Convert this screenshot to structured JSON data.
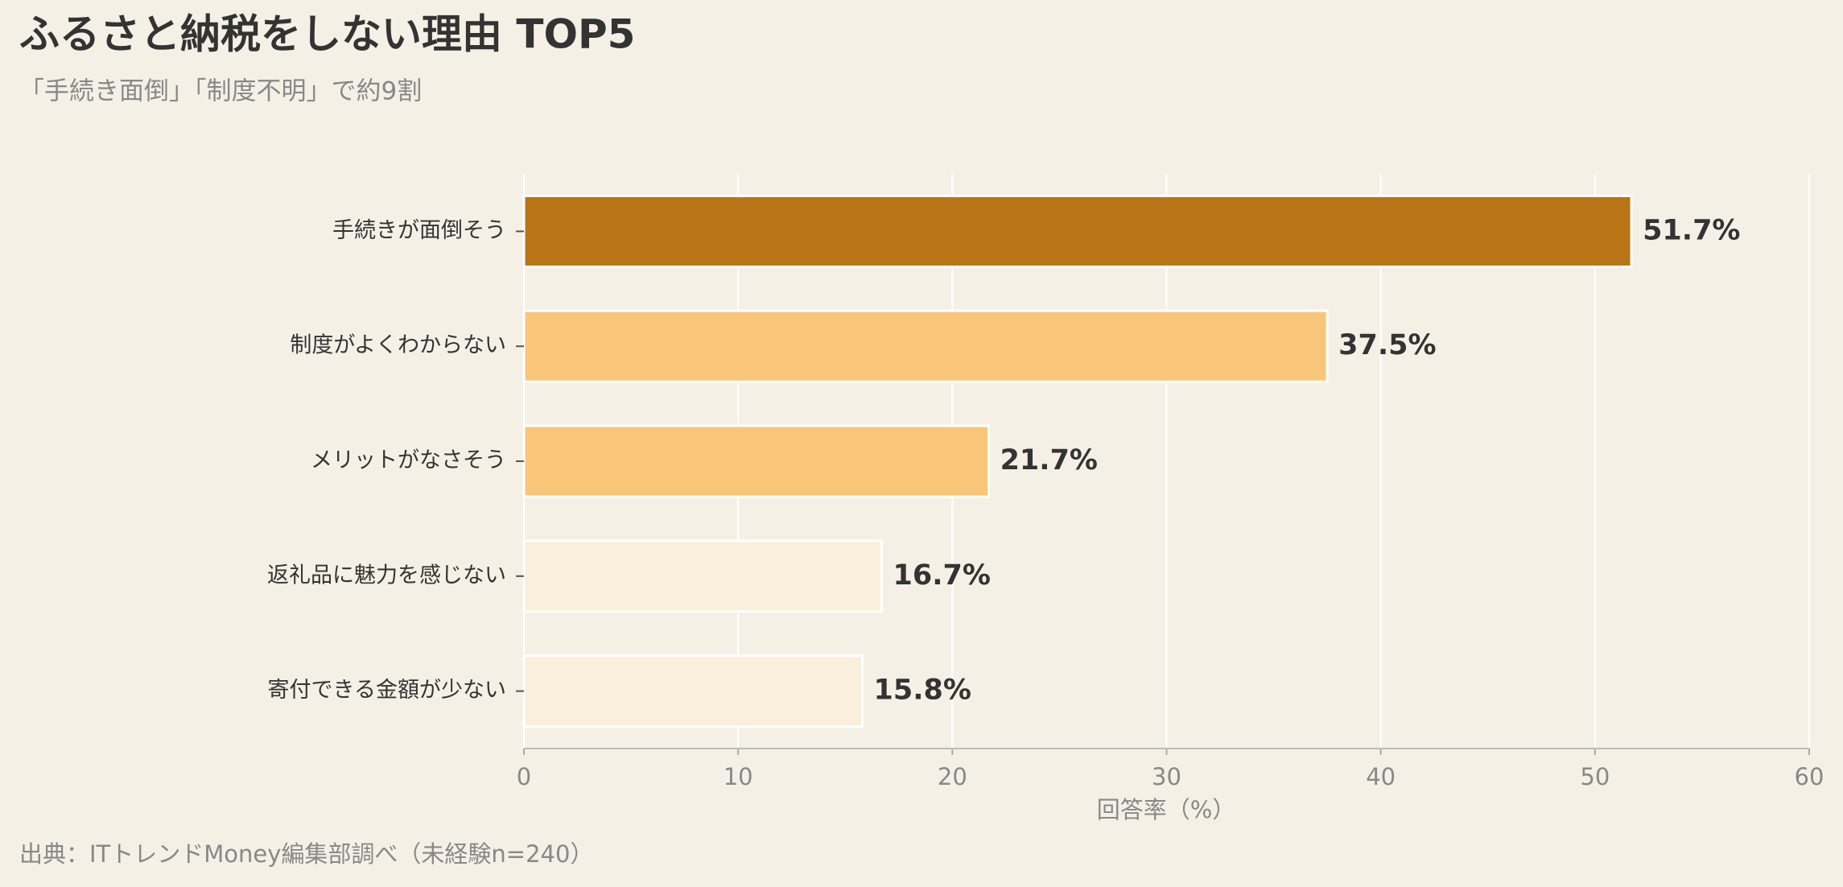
{
  "chart_data": {
    "type": "bar",
    "orientation": "horizontal",
    "title": "ふるさと納税をしない理由 TOP5",
    "subtitle": "「手続き面倒」「制度不明」で約9割",
    "categories": [
      "手続きが面倒そう",
      "制度がよくわからない",
      "メリットがなさそう",
      "返礼品に魅力を感じない",
      "寄付できる金額が少ない"
    ],
    "values": [
      51.7,
      37.5,
      21.7,
      16.7,
      15.8
    ],
    "value_labels": [
      "51.7%",
      "37.5%",
      "21.7%",
      "16.7%",
      "15.8%"
    ],
    "colors": [
      "#b87415",
      "#f9c679",
      "#f9c679",
      "#faeedd",
      "#faeedd"
    ],
    "xlim": [
      0,
      60
    ],
    "xticks": [
      0,
      10,
      20,
      30,
      40,
      50,
      60
    ],
    "xlabel": "回答率（%）",
    "grid": true,
    "source": "出典：ITトレンドMoney編集部調べ（未経験n=240）"
  }
}
